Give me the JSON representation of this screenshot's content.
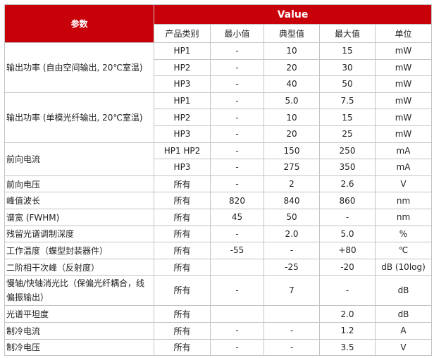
{
  "header": {
    "param": "参数",
    "value": "Value",
    "columns": [
      "产品类别",
      "最小值",
      "典型值",
      "最大值",
      "单位"
    ]
  },
  "accent_color": "#c8000a",
  "rows": [
    {
      "param": "输出功率 (自由空间输出, 20℃室温)",
      "span": 3,
      "type": "HP1",
      "min": "-",
      "typ": "10",
      "max": "15",
      "unit": "mW"
    },
    {
      "type": "HP2",
      "min": "-",
      "typ": "20",
      "max": "30",
      "unit": "mW"
    },
    {
      "type": "HP3",
      "min": "-",
      "typ": "40",
      "max": "50",
      "unit": "mW"
    },
    {
      "param": "输出功率 (单模光纤输出, 20℃室温)",
      "span": 3,
      "type": "HP1",
      "min": "-",
      "typ": "5.0",
      "max": "7.5",
      "unit": "mW"
    },
    {
      "type": "HP2",
      "min": "-",
      "typ": "10",
      "max": "15",
      "unit": "mW"
    },
    {
      "type": "HP3",
      "min": "-",
      "typ": "20",
      "max": "25",
      "unit": "mW"
    },
    {
      "param": "前向电流",
      "span": 2,
      "type": "HP1 HP2",
      "min": "-",
      "typ": "150",
      "max": "250",
      "unit": "mA"
    },
    {
      "type": "HP3",
      "min": "-",
      "typ": "275",
      "max": "350",
      "unit": "mA"
    },
    {
      "param": "前向电压",
      "type": "所有",
      "min": "-",
      "typ": "2",
      "max": "2.6",
      "unit": "V"
    },
    {
      "param": "峰值波长",
      "type": "所有",
      "min": "820",
      "typ": "840",
      "max": "860",
      "unit": "nm"
    },
    {
      "param": "谱宽 (FWHM)",
      "type": "所有",
      "min": "45",
      "typ": "50",
      "max": "-",
      "unit": "nm"
    },
    {
      "param": "残留光谱调制深度",
      "type": "所有",
      "min": "-",
      "typ": "2.0",
      "max": "5.0",
      "unit": "%"
    },
    {
      "param": "工作温度（蝶型封装器件）",
      "type": "所有",
      "min": "-55",
      "typ": "-",
      "max": "+80",
      "unit": "℃"
    },
    {
      "param": "二阶相干次峰（反射度）",
      "type": "所有",
      "min": "",
      "typ": "-25",
      "max": "-20",
      "unit": "dB (10log)"
    },
    {
      "param": "慢轴/快轴消光比（保偏光纤耦合，线偏振输出）",
      "type": "所有",
      "min": "-",
      "typ": "7",
      "max": "-",
      "unit": "dB",
      "tall": true
    },
    {
      "param": "光谱平坦度",
      "type": "所有",
      "min": "",
      "typ": "",
      "max": "2.0",
      "unit": "dB"
    },
    {
      "param": "制冷电流",
      "type": "所有",
      "min": "-",
      "typ": "-",
      "max": "1.2",
      "unit": "A"
    },
    {
      "param": "制冷电压",
      "type": "所有",
      "min": "-",
      "typ": "-",
      "max": "3.5",
      "unit": "V"
    }
  ]
}
